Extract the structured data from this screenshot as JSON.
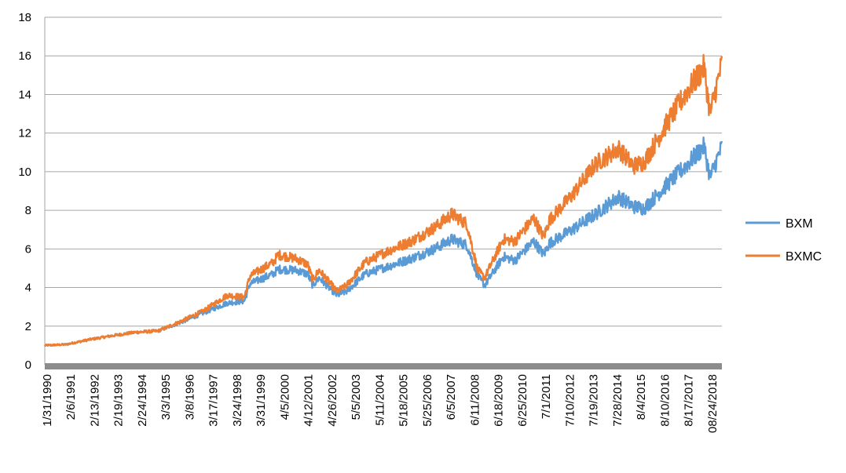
{
  "chart_data": {
    "type": "line",
    "title": "",
    "xlabel": "",
    "ylabel": "",
    "ylim": [
      0,
      18
    ],
    "yticks": [
      "0",
      "2",
      "4",
      "6",
      "8",
      "10",
      "12",
      "14",
      "16",
      "18"
    ],
    "xlim": [
      "1/31/1990",
      "6/30/2019"
    ],
    "x_tick_labels": [
      "1/31/1990",
      "2/6/1991",
      "2/13/1992",
      "2/19/1993",
      "2/24/1994",
      "3/3/1995",
      "3/8/1996",
      "3/17/1997",
      "3/24/1998",
      "3/31/1999",
      "4/5/2000",
      "4/12/2001",
      "4/26/2002",
      "5/5/2003",
      "5/11/2004",
      "5/18/2005",
      "5/25/2006",
      "6/5/2007",
      "6/11/2008",
      "6/18/2009",
      "6/25/2010",
      "7/1/2011",
      "7/10/2012",
      "7/19/2013",
      "7/28/2014",
      "8/4/2015",
      "8/10/2016",
      "8/17/2017",
      "08/24/2018"
    ],
    "grid": "horizontal",
    "legend": "right",
    "colors": {
      "BXM": "#5B9BD5",
      "BXMC": "#ED7D31",
      "grid": "#a6a6a6",
      "xaxis": "#8c8c8c"
    },
    "x": [
      "1/31/1990",
      "1/1/1991",
      "1/1/1992",
      "1/1/1993",
      "1/1/1994",
      "1/1/1995",
      "1/1/1996",
      "1/1/1997",
      "1/1/1998",
      "10/1/1998",
      "12/31/1998",
      "1/1/2000",
      "3/24/2000",
      "1/1/2001",
      "7/1/2001",
      "9/21/2001",
      "12/31/2001",
      "10/9/2002",
      "3/11/2003",
      "1/1/2004",
      "1/1/2005",
      "1/1/2006",
      "1/1/2007",
      "10/9/2007",
      "6/1/2008",
      "11/20/2008",
      "3/9/2009",
      "1/1/2010",
      "7/1/2010",
      "4/29/2011",
      "10/3/2011",
      "1/1/2012",
      "1/1/2013",
      "1/1/2014",
      "1/1/2015",
      "8/24/2015",
      "2/11/2016",
      "1/1/2017",
      "1/1/2018",
      "9/20/2018",
      "12/24/2018",
      "6/30/2019"
    ],
    "series": [
      {
        "name": "BXM",
        "values": [
          1.0,
          1.05,
          1.3,
          1.5,
          1.68,
          1.75,
          2.2,
          2.7,
          3.2,
          3.3,
          4.2,
          4.7,
          4.95,
          4.9,
          4.7,
          4.1,
          4.5,
          3.6,
          3.8,
          4.7,
          5.1,
          5.5,
          6.0,
          6.5,
          6.2,
          4.6,
          4.1,
          5.6,
          5.4,
          6.4,
          5.7,
          6.3,
          7.0,
          7.8,
          8.7,
          8.2,
          8.1,
          9.2,
          10.4,
          11.3,
          9.7,
          11.3
        ]
      },
      {
        "name": "BXMC",
        "values": [
          1.0,
          1.05,
          1.3,
          1.5,
          1.68,
          1.75,
          2.25,
          2.8,
          3.6,
          3.5,
          4.6,
          5.3,
          5.7,
          5.5,
          5.2,
          4.4,
          4.9,
          3.8,
          4.1,
          5.3,
          5.9,
          6.4,
          7.1,
          7.8,
          7.3,
          4.9,
          4.5,
          6.5,
          6.4,
          7.6,
          6.6,
          7.5,
          8.8,
          10.4,
          11.2,
          10.3,
          10.5,
          12.3,
          14.2,
          15.4,
          13.0,
          15.6
        ]
      }
    ]
  }
}
